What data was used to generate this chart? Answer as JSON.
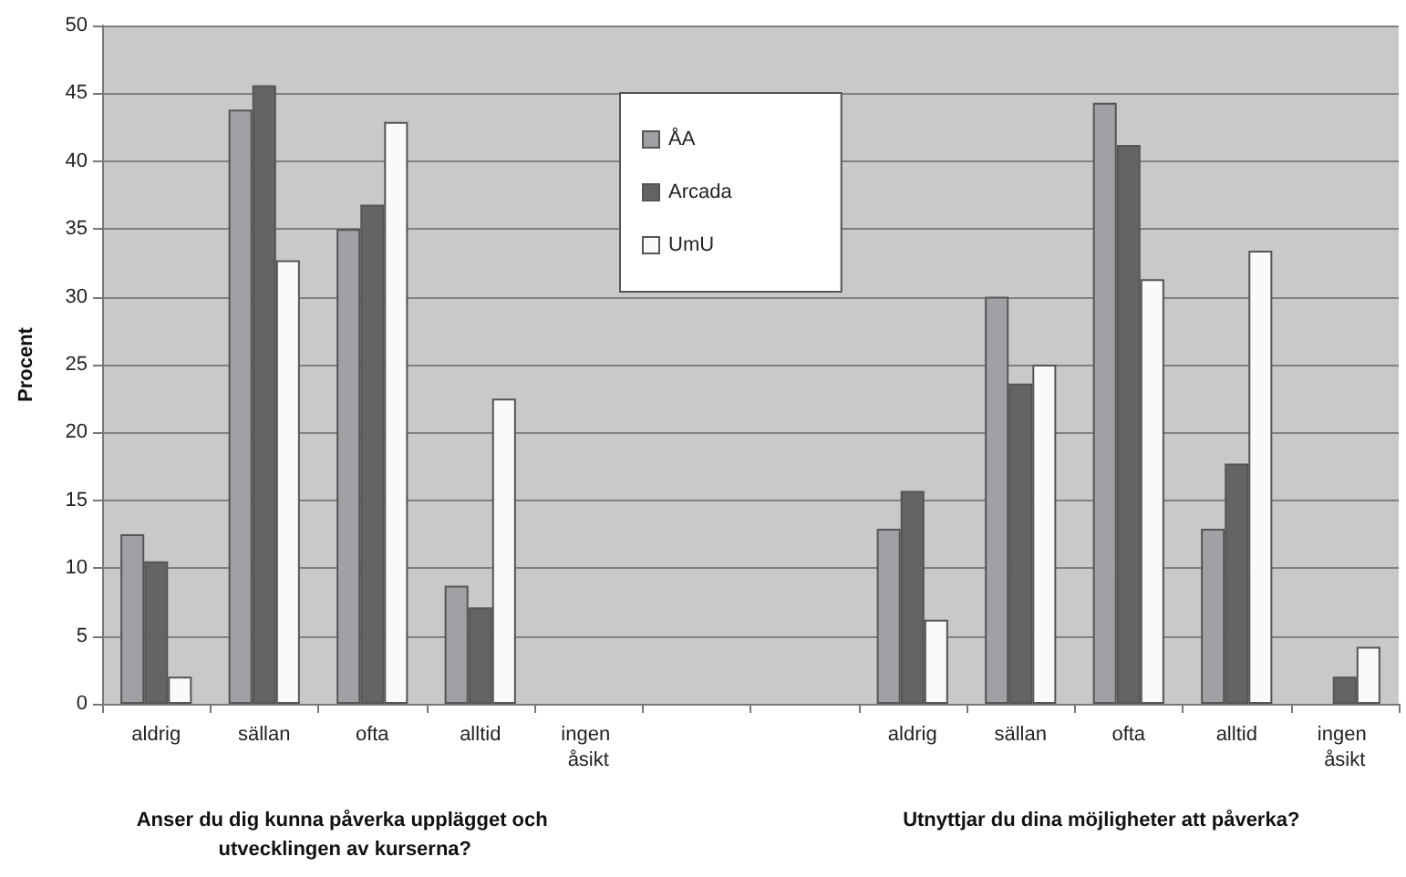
{
  "chart_data": {
    "type": "bar",
    "ylabel": "Procent",
    "categories": [
      "aldrig",
      "sällan",
      "ofta",
      "alltid",
      "ingen åsikt",
      null,
      null,
      "aldrig",
      "sällan",
      "ofta",
      "alltid",
      "ingen åsikt"
    ],
    "series": [
      {
        "name": "ÅA",
        "color": "#a0a1a5",
        "values": [
          12.5,
          43.8,
          35.0,
          8.7,
          0,
          null,
          null,
          12.9,
          30.0,
          44.3,
          12.9,
          0
        ]
      },
      {
        "name": "Arcada",
        "color": "#636466",
        "values": [
          10.5,
          45.6,
          36.8,
          7.1,
          0,
          null,
          null,
          15.7,
          23.6,
          41.2,
          17.7,
          2.0
        ]
      },
      {
        "name": "UmU",
        "color": "#fafafa",
        "values": [
          2.0,
          32.7,
          42.9,
          22.5,
          0,
          null,
          null,
          6.2,
          25.0,
          31.3,
          33.4,
          4.2
        ]
      }
    ],
    "ylim": [
      0,
      50
    ],
    "yticks": [
      0,
      5,
      10,
      15,
      20,
      25,
      30,
      35,
      40,
      45,
      50
    ],
    "grid": "y",
    "legend": "top",
    "annotations": [
      "Anser du dig kunna påverka upplägget och utvecklingen av kurserna?",
      "Utnyttjar du dina möjligheter att påverka?"
    ]
  }
}
